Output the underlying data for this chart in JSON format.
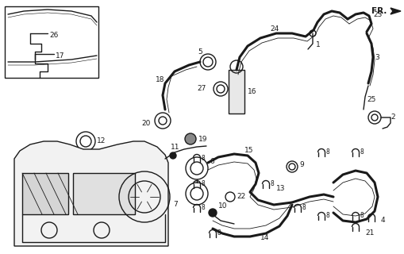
{
  "bg_color": "#ffffff",
  "line_color": "#1a1a1a",
  "figsize": [
    5.1,
    3.2
  ],
  "dpi": 100,
  "lw_thin": 0.6,
  "lw_med": 1.0,
  "lw_thick": 1.8,
  "lw_hose": 2.2
}
